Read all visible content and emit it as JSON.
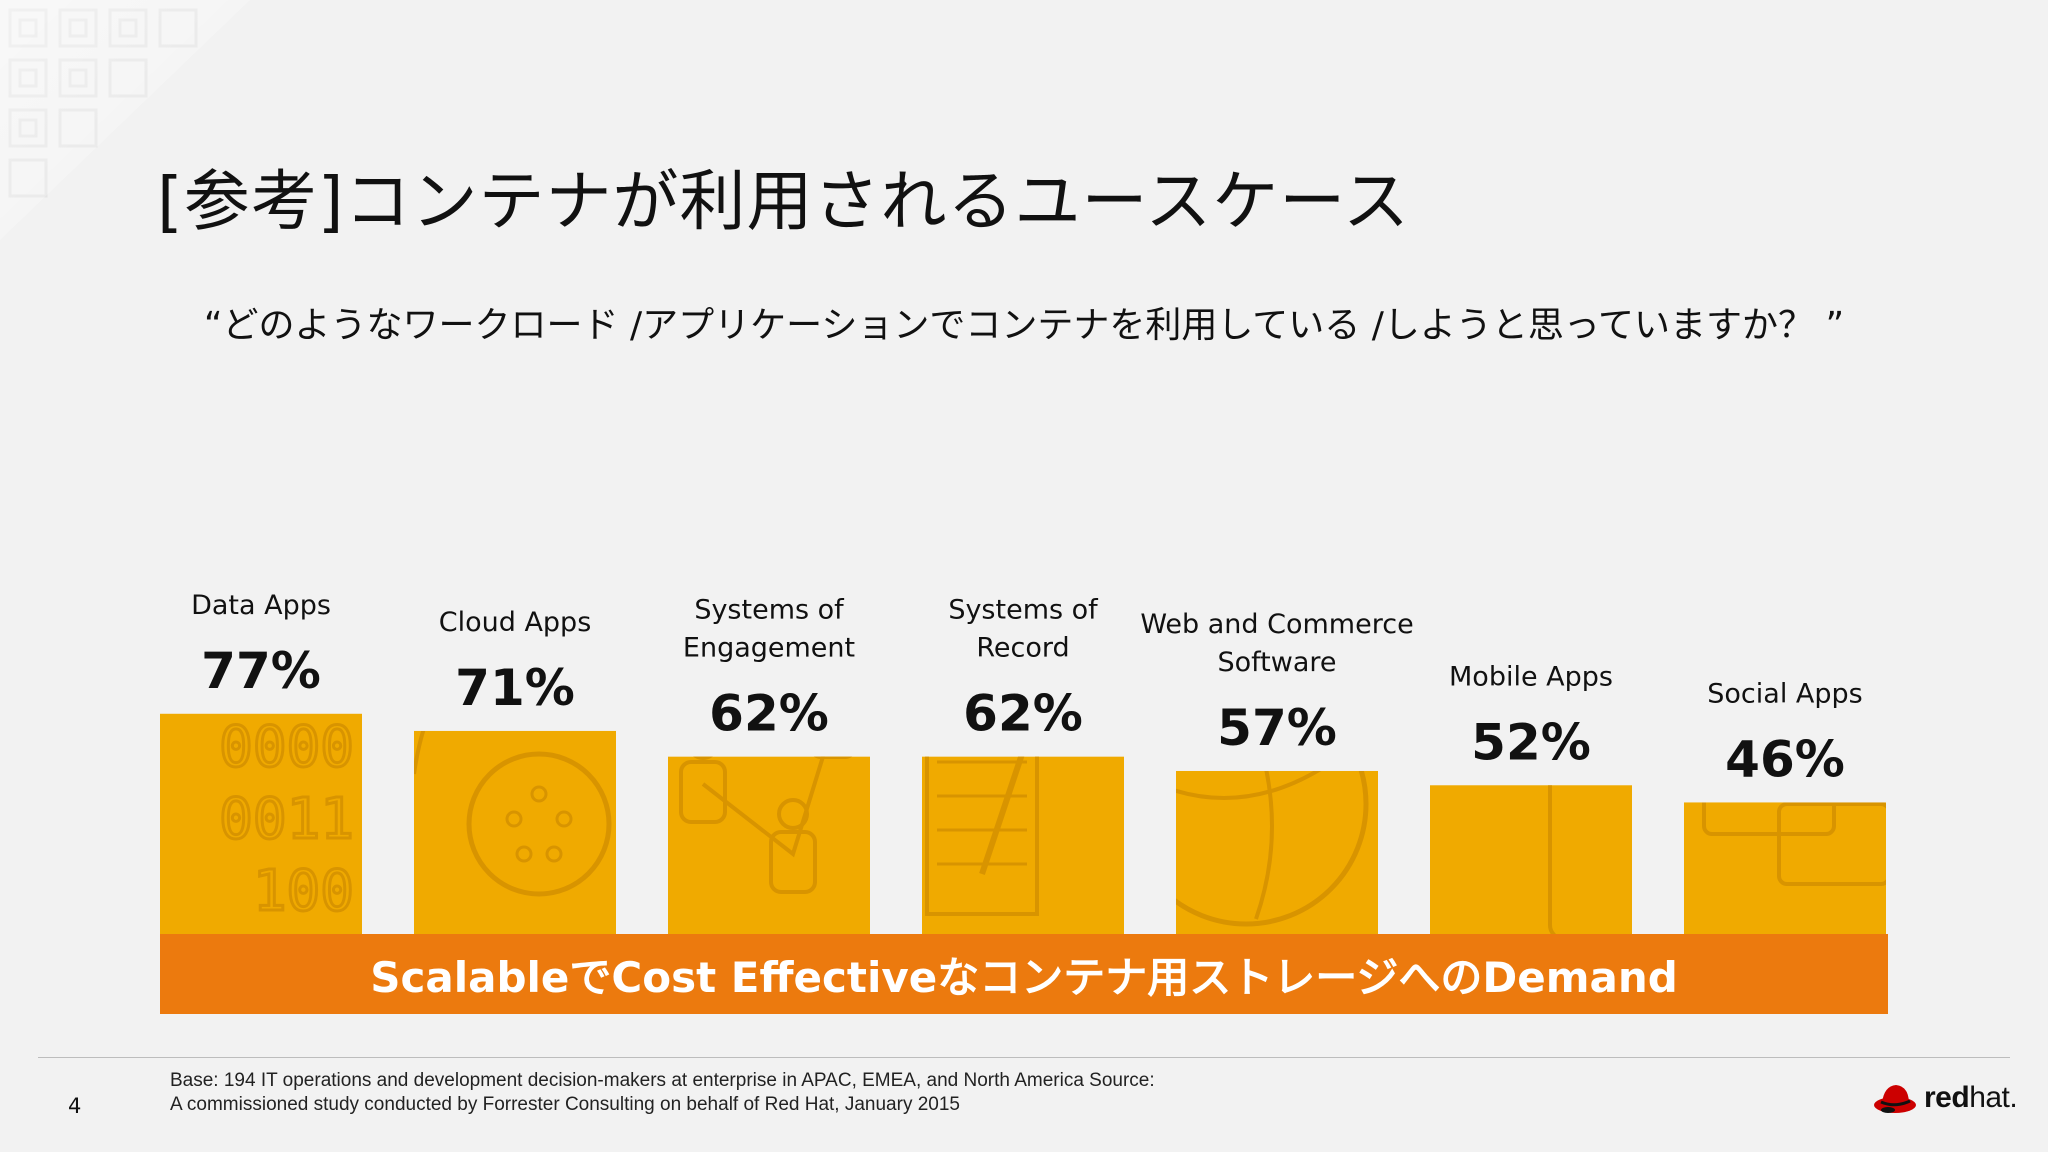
{
  "slide": {
    "title": "[参考]コンテナが利用されるユースケース",
    "subtitle": "“どのようなワークロード /アプリケーションでコンテナを利用している /しようと思っていますか？ ”",
    "banner": "ScalableでCost Effectiveなコンテナ用ストレージへのDemand",
    "footnote_line1": "Base: 194 IT operations and development decision-makers at enterprise in APAC, EMEA, and North America Source:",
    "footnote_line2": "A commissioned study conducted by Forrester Consulting on behalf of Red Hat, January 2015",
    "page_number": "4",
    "logo_bold": "red",
    "logo_light": "hat."
  },
  "colors": {
    "bar": "#f0aa00",
    "bar_icon": "#d89400",
    "banner": "#ec7a0e",
    "logo_red": "#cc0000"
  },
  "chart_data": {
    "type": "bar",
    "categories": [
      [
        "Data Apps"
      ],
      [
        "Cloud Apps"
      ],
      [
        "Systems of",
        "Engagement"
      ],
      [
        "Systems of",
        "Record"
      ],
      [
        "Web and Commerce",
        "Software"
      ],
      [
        "Mobile Apps"
      ],
      [
        "Social Apps"
      ]
    ],
    "values": [
      77,
      71,
      62,
      62,
      57,
      52,
      46
    ],
    "value_labels": [
      "77%",
      "71%",
      "62%",
      "62%",
      "57%",
      "52%",
      "46%"
    ],
    "icons": [
      "binary-data-icon",
      "cloud-network-icon",
      "people-network-icon",
      "notepad-icon",
      "globe-icon",
      "mobile-phone-icon",
      "chat-bubbles-icon"
    ],
    "xlabel": "",
    "ylabel": "",
    "ylim": [
      0,
      100
    ],
    "grid": false,
    "legend": "none"
  }
}
